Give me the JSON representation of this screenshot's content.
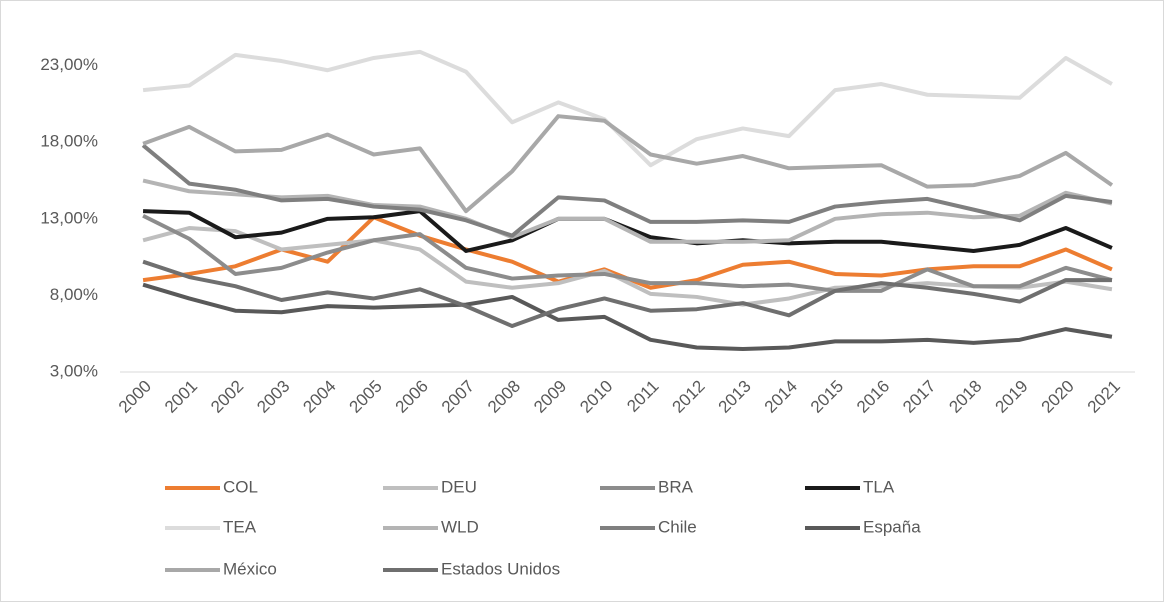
{
  "chart_data": {
    "type": "line",
    "categories": [
      "2000",
      "2001",
      "2002",
      "2003",
      "2004",
      "2005",
      "2006",
      "2007",
      "2008",
      "2009",
      "2010",
      "2011",
      "2012",
      "2013",
      "2014",
      "2015",
      "2016",
      "2017",
      "2018",
      "2019",
      "2020",
      "2021"
    ],
    "ylim": [
      3,
      25
    ],
    "yticks": [
      {
        "value": 3,
        "label": "3,00%"
      },
      {
        "value": 8,
        "label": "8,00%"
      },
      {
        "value": 13,
        "label": "13,00%"
      },
      {
        "value": 18,
        "label": "18,00%"
      },
      {
        "value": 23,
        "label": "23,00%"
      }
    ],
    "grid": false,
    "legend": "bottom",
    "series": [
      {
        "name": "COL",
        "color": "#ed7d31",
        "values": [
          9.0,
          9.4,
          9.9,
          11.0,
          10.2,
          13.1,
          11.9,
          11.0,
          10.2,
          8.9,
          9.7,
          8.5,
          9.0,
          10.0,
          10.2,
          9.4,
          9.3,
          9.7,
          9.9,
          9.9,
          11.0,
          9.7
        ]
      },
      {
        "name": "DEU",
        "color": "#bfbfbf",
        "values": [
          11.6,
          12.4,
          12.2,
          11.0,
          11.3,
          11.6,
          11.0,
          8.9,
          8.5,
          8.8,
          9.6,
          8.1,
          7.9,
          7.4,
          7.8,
          8.5,
          8.6,
          8.8,
          8.6,
          8.5,
          8.9,
          8.4
        ]
      },
      {
        "name": "BRA",
        "color": "#8c8c8c",
        "values": [
          13.2,
          11.7,
          9.4,
          9.8,
          10.8,
          11.6,
          12.0,
          9.8,
          9.1,
          9.3,
          9.4,
          8.8,
          8.8,
          8.6,
          8.7,
          8.3,
          8.3,
          9.7,
          8.6,
          8.6,
          9.8,
          9.0
        ]
      },
      {
        "name": "TLA",
        "color": "#1a1a1a",
        "values": [
          13.5,
          13.4,
          11.8,
          12.1,
          13.0,
          13.1,
          13.5,
          10.9,
          11.6,
          13.0,
          13.0,
          11.8,
          11.4,
          11.6,
          11.4,
          11.5,
          11.5,
          11.2,
          10.9,
          11.3,
          12.4,
          11.1
        ]
      },
      {
        "name": "TEA",
        "color": "#dcdcdc",
        "values": [
          21.4,
          21.7,
          23.7,
          23.3,
          22.7,
          23.5,
          23.9,
          22.6,
          19.3,
          20.6,
          19.5,
          16.5,
          18.2,
          18.9,
          18.4,
          21.4,
          21.8,
          21.1,
          21.0,
          20.9,
          23.5,
          21.8
        ]
      },
      {
        "name": "WLD",
        "color": "#b4b4b4",
        "values": [
          15.5,
          14.8,
          14.6,
          14.4,
          14.5,
          13.9,
          13.8,
          13.0,
          11.8,
          13.0,
          13.0,
          11.5,
          11.5,
          11.5,
          11.6,
          13.0,
          13.3,
          13.4,
          13.1,
          13.2,
          14.7,
          14.0
        ]
      },
      {
        "name": "Chile",
        "color": "#7f7f7f",
        "values": [
          17.8,
          15.3,
          14.9,
          14.2,
          14.3,
          13.8,
          13.6,
          12.9,
          11.9,
          14.4,
          14.2,
          12.8,
          12.8,
          12.9,
          12.8,
          13.8,
          14.1,
          14.3,
          13.6,
          12.9,
          14.5,
          14.1
        ]
      },
      {
        "name": "España",
        "color": "#595959",
        "values": [
          8.7,
          7.8,
          7.0,
          6.9,
          7.3,
          7.2,
          7.3,
          7.4,
          7.9,
          6.4,
          6.6,
          5.1,
          4.6,
          4.5,
          4.6,
          5.0,
          5.0,
          5.1,
          4.9,
          5.1,
          5.8,
          5.3
        ]
      },
      {
        "name": "México",
        "color": "#a8a8a8",
        "values": [
          17.9,
          19.0,
          17.4,
          17.5,
          18.5,
          17.2,
          17.6,
          13.5,
          16.1,
          19.7,
          19.4,
          17.2,
          16.6,
          17.1,
          16.3,
          16.4,
          16.5,
          15.1,
          15.2,
          15.8,
          17.3,
          15.2
        ]
      },
      {
        "name": "Estados Unidos",
        "color": "#6f6f6f",
        "values": [
          10.2,
          9.2,
          8.6,
          7.7,
          8.2,
          7.8,
          8.4,
          7.3,
          6.0,
          7.1,
          7.8,
          7.0,
          7.1,
          7.5,
          6.7,
          8.3,
          8.8,
          8.5,
          8.1,
          7.6,
          9.0,
          9.0
        ]
      }
    ]
  }
}
